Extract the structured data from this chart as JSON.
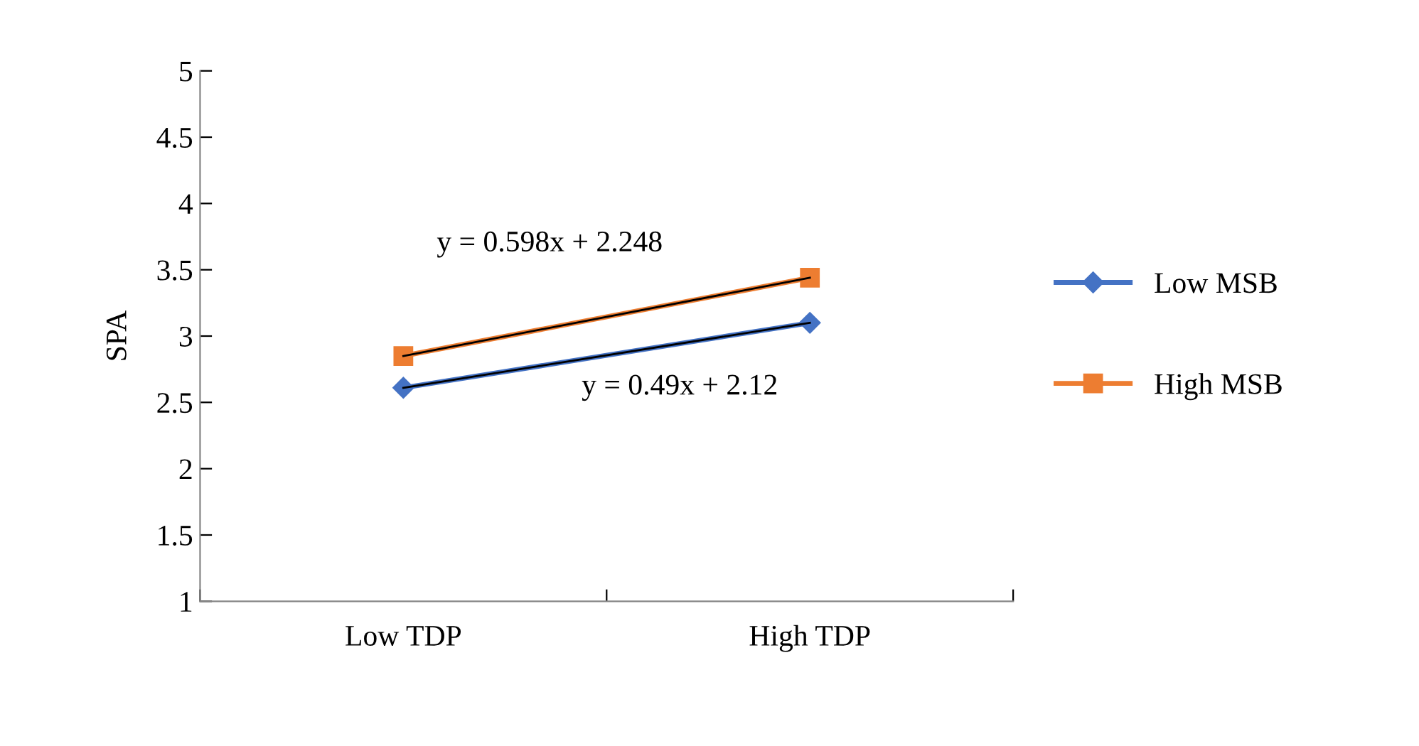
{
  "chart_data": {
    "type": "line",
    "ylabel": "SPA",
    "categories": [
      "Low TDP",
      "High TDP"
    ],
    "series": [
      {
        "name": "Low MSB",
        "color": "#4472c4",
        "values": [
          2.61,
          3.1
        ],
        "marker": "diamond"
      },
      {
        "name": "High MSB",
        "color": "#ed7d31",
        "values": [
          2.85,
          3.44
        ],
        "marker": "square"
      },
      {
        "color": "#000000",
        "values": [
          2.61,
          3.1
        ],
        "marker": "none"
      },
      {
        "color": "#000000",
        "values": [
          2.85,
          3.44
        ],
        "marker": "none"
      }
    ],
    "annotations": [
      "y = 0.598x + 2.248",
      "y = 0.49x + 2.12"
    ],
    "ylim": [
      1,
      5
    ],
    "yticks": [
      1,
      1.5,
      2,
      2.5,
      3,
      3.5,
      4,
      4.5,
      5
    ],
    "grid": false,
    "legend": "right",
    "line_style": "solid"
  }
}
